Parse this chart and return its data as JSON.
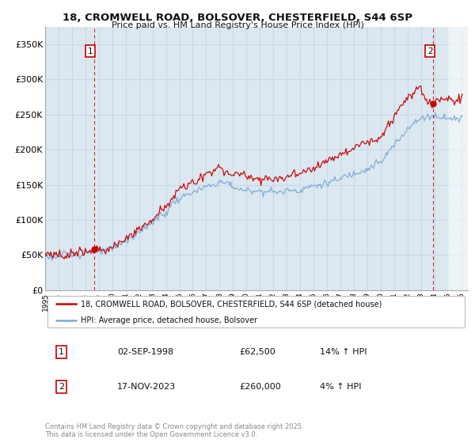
{
  "title_line1": "18, CROMWELL ROAD, BOLSOVER, CHESTERFIELD, S44 6SP",
  "title_line2": "Price paid vs. HM Land Registry's House Price Index (HPI)",
  "legend_label1": "18, CROMWELL ROAD, BOLSOVER, CHESTERFIELD, S44 6SP (detached house)",
  "legend_label2": "HPI: Average price, detached house, Bolsover",
  "annotation1_label": "1",
  "annotation1_date": "02-SEP-1998",
  "annotation1_price": "£62,500",
  "annotation1_hpi": "14% ↑ HPI",
  "annotation2_label": "2",
  "annotation2_date": "17-NOV-2023",
  "annotation2_price": "£260,000",
  "annotation2_hpi": "4% ↑ HPI",
  "footer": "Contains HM Land Registry data © Crown copyright and database right 2025.\nThis data is licensed under the Open Government Licence v3.0.",
  "sale1_year": 1998.67,
  "sale1_price": 62500,
  "sale2_year": 2023.88,
  "sale2_price": 260000,
  "red_color": "#cc0000",
  "blue_color": "#7aa8d2",
  "vline_color": "#cc0000",
  "grid_color": "#c8d8e8",
  "bg_chart_color": "#dce8f0",
  "background_color": "#ffffff",
  "ylim_min": 0,
  "ylim_max": 375000,
  "xlim_min": 1995.0,
  "xlim_max": 2026.5
}
